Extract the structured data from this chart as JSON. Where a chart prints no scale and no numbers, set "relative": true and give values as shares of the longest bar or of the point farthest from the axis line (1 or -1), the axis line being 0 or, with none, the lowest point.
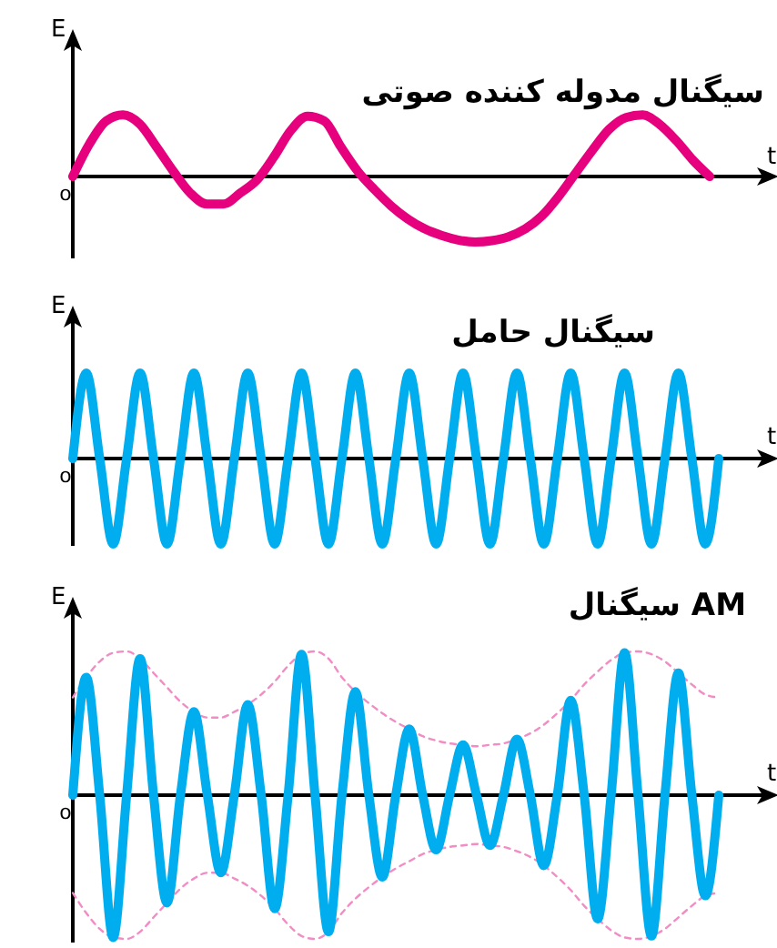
{
  "chart_data": [
    {
      "type": "line",
      "title": "سیگنال مدوله کننده صوتی",
      "xlabel": "t",
      "ylabel": "E",
      "relative": true,
      "annotations": [
        "o"
      ],
      "categories": [
        null,
        null,
        null,
        null,
        null,
        null,
        null,
        null,
        null,
        null,
        null,
        null,
        null,
        null,
        null,
        null,
        null,
        null,
        null,
        null,
        null,
        null,
        null,
        null,
        null,
        null,
        null,
        null,
        null,
        null,
        null,
        null,
        null,
        null,
        null,
        null,
        null,
        null,
        null
      ],
      "series": [
        {
          "color": "#e6007e",
          "line_style": "solid",
          "values": [
            0,
            0.5,
            0.85,
            0.94,
            0.8,
            0.45,
            0.08,
            -0.25,
            -0.42,
            -0.42,
            -0.25,
            -0.05,
            0.3,
            0.7,
            0.92,
            0.85,
            0.45,
            0.08,
            -0.2,
            -0.45,
            -0.65,
            -0.8,
            -0.9,
            -0.97,
            -1,
            -0.98,
            -0.92,
            -0.8,
            -0.6,
            -0.3,
            0.05,
            0.4,
            0.72,
            0.9,
            0.94,
            0.8,
            0.55,
            0.25,
            0
          ]
        }
      ]
    },
    {
      "type": "line",
      "title": "سیگنال حامل",
      "xlabel": "t",
      "ylabel": "E",
      "relative": true,
      "annotations": [
        "o"
      ],
      "categories": [
        null,
        null,
        null,
        null,
        null,
        null,
        null,
        null,
        null,
        null,
        null,
        null,
        null,
        null,
        null,
        null,
        null,
        null,
        null,
        null,
        null,
        null,
        null,
        null,
        null,
        null,
        null,
        null,
        null,
        null,
        null,
        null,
        null,
        null,
        null,
        null,
        null,
        null,
        null,
        null,
        null,
        null,
        null,
        null,
        null,
        null,
        null,
        null,
        null
      ],
      "series": [
        {
          "color": "#00aeef",
          "line_style": "solid",
          "values": [
            0,
            1,
            0,
            -1,
            0,
            1,
            0,
            -1,
            0,
            1,
            0,
            -1,
            0,
            1,
            0,
            -1,
            0,
            1,
            0,
            -1,
            0,
            1,
            0,
            -1,
            0,
            1,
            0,
            -1,
            0,
            1,
            0,
            -1,
            0,
            1,
            0,
            -1,
            0,
            1,
            0,
            -1,
            0,
            1,
            0,
            -1,
            0,
            1,
            0,
            -1,
            0
          ]
        }
      ]
    },
    {
      "type": "line",
      "title": "سیگنال AM",
      "xlabel": "t",
      "ylabel": "E",
      "relative": true,
      "annotations": [
        "o"
      ],
      "categories": [
        null,
        null,
        null,
        null,
        null,
        null,
        null,
        null,
        null,
        null,
        null,
        null,
        null,
        null,
        null,
        null,
        null,
        null,
        null,
        null,
        null,
        null,
        null,
        null,
        null,
        null,
        null,
        null,
        null,
        null,
        null,
        null,
        null,
        null,
        null,
        null,
        null,
        null,
        null,
        null,
        null,
        null,
        null,
        null,
        null,
        null,
        null,
        null,
        null
      ],
      "series": [
        {
          "color": "#f28cc4",
          "line_style": "dashed",
          "values": [
            0.68,
            0.82,
            0.93,
            0.99,
            1,
            0.95,
            0.85,
            0.75,
            0.65,
            0.58,
            0.54,
            0.54,
            0.58,
            0.63,
            0.7,
            0.79,
            0.9,
            0.98,
            1,
            0.95,
            0.82,
            0.72,
            0.64,
            0.57,
            0.51,
            0.46,
            0.41,
            0.38,
            0.36,
            0.35,
            0.34,
            0.35,
            0.36,
            0.39,
            0.43,
            0.49,
            0.57,
            0.66,
            0.77,
            0.86,
            0.94,
            0.99,
            1,
            0.98,
            0.93,
            0.85,
            0.77,
            0.7,
            0.68
          ]
        },
        {
          "color": "#f28cc4",
          "line_style": "dashed",
          "values": [
            -0.68,
            -0.82,
            -0.93,
            -0.99,
            -1,
            -0.95,
            -0.85,
            -0.75,
            -0.65,
            -0.58,
            -0.54,
            -0.54,
            -0.58,
            -0.63,
            -0.7,
            -0.79,
            -0.9,
            -0.98,
            -1,
            -0.95,
            -0.82,
            -0.72,
            -0.64,
            -0.57,
            -0.51,
            -0.46,
            -0.41,
            -0.38,
            -0.36,
            -0.35,
            -0.34,
            -0.35,
            -0.36,
            -0.39,
            -0.43,
            -0.49,
            -0.57,
            -0.66,
            -0.77,
            -0.86,
            -0.94,
            -0.99,
            -1,
            -0.98,
            -0.93,
            -0.85,
            -0.77,
            -0.7,
            -0.68
          ]
        },
        {
          "color": "#00aeef",
          "line_style": "solid",
          "values": [
            0,
            0.82,
            0,
            -0.99,
            0,
            0.95,
            0,
            -0.75,
            0,
            0.58,
            0,
            -0.54,
            0,
            0.63,
            0,
            -0.79,
            0,
            0.98,
            0,
            -0.95,
            0,
            0.72,
            0,
            -0.57,
            0,
            0.46,
            0,
            -0.38,
            0,
            0.35,
            0,
            -0.35,
            0,
            0.39,
            0,
            -0.49,
            0,
            0.66,
            0,
            -0.86,
            0,
            0.99,
            0,
            -0.98,
            0,
            0.85,
            0,
            -0.7,
            0
          ]
        }
      ]
    }
  ]
}
